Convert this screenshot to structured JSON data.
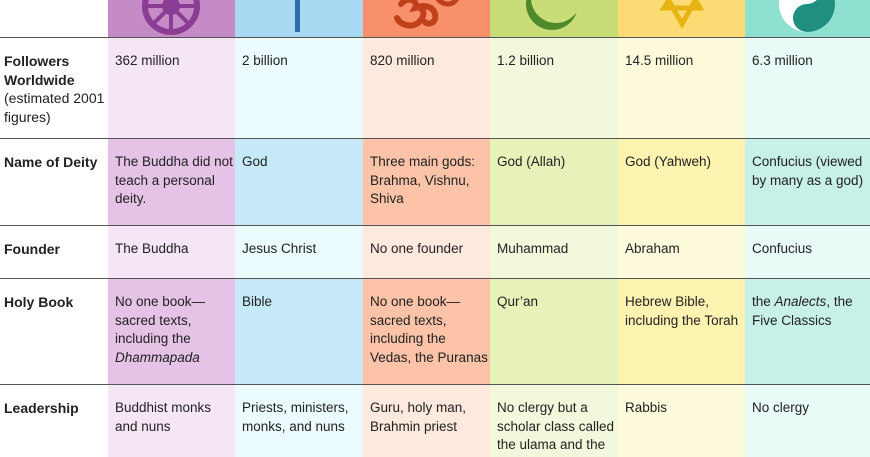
{
  "columns": [
    {
      "religion_icon": "dharma-wheel-icon",
      "header_color": "#c58bc6"
    },
    {
      "religion_icon": "cross-icon",
      "header_color": "#a9d9f2"
    },
    {
      "religion_icon": "om-icon",
      "header_color": "#f7906b"
    },
    {
      "religion_icon": "crescent-icon",
      "header_color": "#c8dc78"
    },
    {
      "religion_icon": "star-of-david-icon",
      "header_color": "#fddb74"
    },
    {
      "religion_icon": "yin-yang-icon",
      "header_color": "#8ee0cf"
    }
  ],
  "rows": [
    {
      "label": "Followers Worldwide",
      "sublabel": "(estimated 2001 figures)",
      "values": [
        "362 million",
        "2 billion",
        "820 million",
        "1.2 billion",
        "14.5 million",
        "6.3 million"
      ]
    },
    {
      "label": "Name of Deity",
      "values": [
        "The Buddha did not teach a personal deity.",
        "God",
        "Three main gods: Brahma, Vishnu, Shiva",
        "God (Allah)",
        "God (Yahweh)",
        "Confucius (viewed by many as a god)"
      ]
    },
    {
      "label": "Founder",
      "values": [
        "The Buddha",
        "Jesus Christ",
        "No one founder",
        "Muhammad",
        "Abraham",
        "Confucius"
      ]
    },
    {
      "label": "Holy Book",
      "values": [
        {
          "pre": "No one book—sacred texts, including the ",
          "em": "Dhammapada",
          "post": ""
        },
        "Bible",
        "No one book—sacred texts, including the Vedas, the Puranas",
        "Qur’an",
        "Hebrew Bible, including the Torah",
        {
          "pre": "the ",
          "em": "Analects",
          "post": ", the Five Classics"
        }
      ]
    },
    {
      "label": "Leadership",
      "values": [
        "Buddhist monks and nuns",
        "Priests, ministers, monks, and nuns",
        "Guru, holy man, Brahmin priest",
        "No clergy but a scholar class called the ulama and the",
        "Rabbis",
        "No clergy"
      ]
    }
  ]
}
